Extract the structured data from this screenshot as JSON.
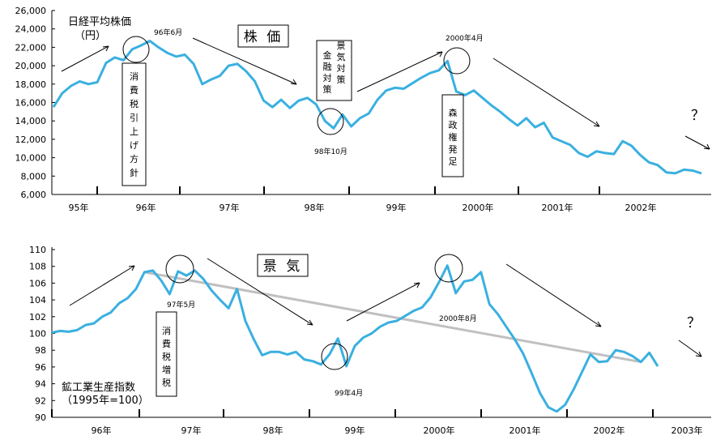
{
  "chart_data": [
    {
      "type": "line",
      "title": "株 価",
      "ylabel": "日経平均株価",
      "ylabel_unit": "（円）",
      "ylim": [
        6000,
        26000
      ],
      "yticks": [
        "6,000",
        "8,000",
        "10,000",
        "12,000",
        "14,000",
        "16,000",
        "18,000",
        "20,000",
        "22,000",
        "24,000",
        "26,000"
      ],
      "xticks": [
        "95年",
        "96年",
        "97年",
        "98年",
        "99年",
        "2000年",
        "2001年",
        "2002年"
      ],
      "series_color": "#3ab0e0",
      "series": [
        {
          "values": [
            15500,
            17000,
            17800,
            18300,
            18000,
            18200,
            20300,
            20900,
            20600,
            21800,
            22200,
            22700,
            22000,
            21400,
            21000,
            21200,
            20200,
            18000,
            18500,
            18900,
            20000,
            20200,
            19400,
            18300,
            16200,
            15500,
            16300,
            15400,
            16200,
            16500,
            15800,
            14000,
            13200,
            14700,
            13400,
            14300,
            14800,
            16300,
            17300,
            17600,
            17500,
            18100,
            18700,
            19200,
            19500,
            20500,
            17200,
            16800,
            17300,
            16500,
            15700,
            15000,
            14200,
            13500,
            14300,
            13300,
            13800,
            12200,
            11800,
            11400,
            10500,
            10100,
            10700,
            10500,
            10400,
            11800,
            11300,
            10300,
            9500,
            9200,
            8400,
            8300,
            8700,
            8600,
            8300
          ]
        }
      ],
      "annotations": {
        "peak_96": "96年6月",
        "trough_98": "98年10月",
        "peak_2000": "2000年4月",
        "box_tax": "消費税引上げ方針",
        "box_finance": "金融対策",
        "box_econ": "景気対策",
        "box_mori": "森政権発足",
        "question": "？"
      }
    },
    {
      "type": "line",
      "title": "景 気",
      "ylabel": "鉱工業生産指数",
      "ylabel_unit": "（1995年=100）",
      "ylim": [
        90,
        110
      ],
      "yticks": [
        "90",
        "92",
        "94",
        "96",
        "98",
        "100",
        "102",
        "104",
        "106",
        "108",
        "110"
      ],
      "xticks": [
        "96年",
        "97年",
        "98年",
        "99年",
        "2000年",
        "2001年",
        "2002年",
        "2003年"
      ],
      "series_color": "#3ab0e0",
      "series": [
        {
          "values": [
            100.1,
            100.3,
            100.2,
            100.4,
            101.0,
            101.2,
            102.0,
            102.5,
            103.6,
            104.2,
            105.3,
            107.3,
            107.5,
            106.3,
            104.7,
            107.4,
            106.9,
            107.5,
            106.5,
            105.1,
            104.0,
            103.0,
            105.3,
            101.5,
            99.3,
            97.4,
            97.8,
            97.8,
            97.5,
            97.8,
            96.9,
            96.7,
            96.3,
            97.5,
            99.4,
            96.1,
            98.5,
            99.5,
            100.0,
            100.8,
            101.3,
            101.5,
            102.1,
            102.7,
            103.1,
            104.3,
            106.1,
            108.1,
            104.8,
            106.2,
            106.4,
            107.3,
            103.5,
            102.3,
            100.8,
            99.3,
            97.6,
            95.3,
            92.9,
            91.2,
            90.7,
            91.5,
            93.3,
            95.4,
            97.5,
            96.6,
            96.7,
            98.0,
            97.8,
            97.3,
            96.6,
            97.7,
            96.1
          ]
        }
      ],
      "reference_line": {
        "color": "#c0c0c0",
        "from": 107.3,
        "to": 96.6
      },
      "annotations": {
        "peak_97": "97年5月",
        "trough_99": "99年4月",
        "peak_2000": "2000年8月",
        "box_tax": "消費税増税",
        "question": "？"
      }
    }
  ]
}
